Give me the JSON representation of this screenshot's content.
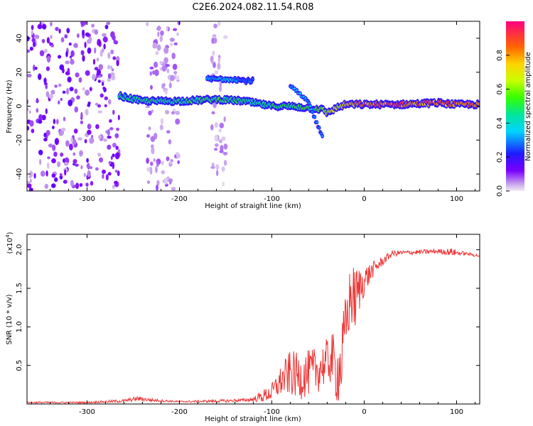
{
  "title": "C2E6.2024.082.11.54.R08",
  "colors": {
    "snr_line": "#ee3333",
    "axis": "#000000"
  },
  "chart_data": [
    {
      "type": "heatmap",
      "title": "",
      "xlabel": "Height of straight line (km)",
      "ylabel": "Frequency (Hz)",
      "xlim": [
        -365,
        125
      ],
      "ylim": [
        -50,
        50
      ],
      "xticks": [
        -300,
        -200,
        -100,
        0,
        100
      ],
      "xtick_labels": [
        "-300",
        "-200",
        "-100",
        "0",
        "100"
      ],
      "yticks": [
        -40,
        -20,
        0,
        20,
        40
      ],
      "ytick_labels": [
        "-40",
        "-20",
        "0",
        "20",
        "40"
      ],
      "colorbar": {
        "label": "Normalized spectral amplitude",
        "range": [
          0,
          1
        ],
        "ticks": [
          0.0,
          0.2,
          0.4,
          0.6,
          0.8
        ],
        "tick_labels": [
          "0.0",
          "0.2",
          "0.4",
          "0.6",
          "0.8"
        ],
        "colormap": "rainbow"
      },
      "ridge": {
        "description": "main spectral ridge (frequency vs height)",
        "x": [
          -265,
          -240,
          -200,
          -160,
          -130,
          -100,
          -80,
          -60,
          -45,
          -40,
          -30,
          -20,
          0,
          40,
          80,
          100,
          125
        ],
        "frequency": [
          6,
          3,
          3,
          4,
          3,
          0,
          0,
          -1,
          -2,
          -4,
          -1,
          1,
          1,
          1,
          2,
          1,
          1
        ],
        "amplitude": [
          0.5,
          0.5,
          0.5,
          0.55,
          0.5,
          0.5,
          0.5,
          0.55,
          0.6,
          0.7,
          0.7,
          0.8,
          0.9,
          0.92,
          0.9,
          0.9,
          0.85
        ]
      },
      "secondary_ridge": {
        "x": [
          -170,
          -160,
          -150,
          -140,
          -130,
          -120
        ],
        "frequency": [
          16,
          16,
          16,
          16,
          15,
          15
        ],
        "amplitude": [
          0.35,
          0.35,
          0.45,
          0.35,
          0.3,
          0.3
        ]
      },
      "branch": {
        "x": [
          -80,
          -70,
          -60,
          -50,
          -45
        ],
        "frequency": [
          12,
          7,
          2,
          -12,
          -17
        ],
        "amplitude": [
          0.35,
          0.4,
          0.35,
          0.3,
          0.3
        ]
      },
      "noise_regions": [
        {
          "x": [
            -365,
            -265
          ],
          "amplitude": 0.25
        },
        {
          "x": [
            -235,
            -200
          ],
          "amplitude": 0.15
        },
        {
          "x": [
            -165,
            -150
          ],
          "amplitude": 0.12
        }
      ]
    },
    {
      "type": "line",
      "title": "",
      "xlabel": "Height of straight line (km)",
      "ylabel": "SNR (10 * v/v)",
      "y_multiplier_label": "(x10",
      "y_multiplier_exp": "4",
      "y_multiplier_close": ")",
      "xlim": [
        -365,
        125
      ],
      "ylim": [
        0,
        2.2
      ],
      "xticks": [
        -300,
        -200,
        -100,
        0,
        100
      ],
      "xtick_labels": [
        "-300",
        "-200",
        "-100",
        "0",
        "100"
      ],
      "yticks": [
        0.5,
        1.0,
        1.5,
        2.0
      ],
      "ytick_labels": [
        "0.5",
        "1.0",
        "1.5",
        "2.0"
      ],
      "series": [
        {
          "name": "SNR",
          "x": [
            -365,
            -300,
            -260,
            -245,
            -230,
            -200,
            -150,
            -130,
            -120,
            -110,
            -100,
            -90,
            -80,
            -70,
            -60,
            -50,
            -40,
            -35,
            -30,
            -25,
            -20,
            -15,
            -10,
            -5,
            0,
            10,
            20,
            30,
            40,
            60,
            80,
            95,
            100,
            110,
            125
          ],
          "values": [
            0.02,
            0.02,
            0.04,
            0.07,
            0.05,
            0.03,
            0.04,
            0.05,
            0.06,
            0.1,
            0.15,
            0.3,
            0.4,
            0.35,
            0.4,
            0.45,
            0.55,
            0.6,
            0.4,
            0.5,
            1.0,
            1.4,
            1.35,
            1.5,
            1.6,
            1.75,
            1.85,
            1.95,
            1.96,
            1.97,
            1.98,
            1.97,
            1.96,
            1.95,
            1.92
          ],
          "noise_amplitude": [
            0.01,
            0.01,
            0.02,
            0.03,
            0.02,
            0.01,
            0.02,
            0.02,
            0.03,
            0.08,
            0.12,
            0.2,
            0.3,
            0.3,
            0.3,
            0.3,
            0.3,
            0.35,
            0.4,
            0.5,
            0.45,
            0.4,
            0.45,
            0.3,
            0.2,
            0.1,
            0.06,
            0.04,
            0.03,
            0.03,
            0.03,
            0.05,
            0.04,
            0.02,
            0.02
          ]
        }
      ]
    }
  ]
}
